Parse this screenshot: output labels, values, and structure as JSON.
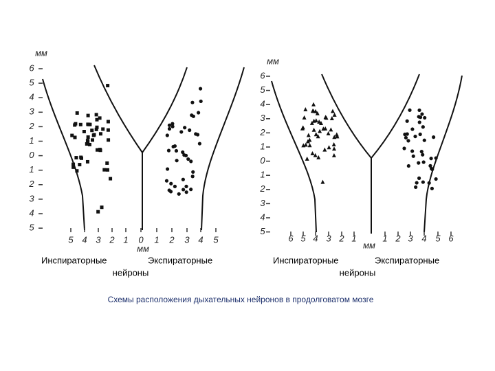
{
  "panels": [
    {
      "y_unit": "мм",
      "y_labels": [
        "6",
        "5",
        "4",
        "3",
        "2",
        "1",
        "0",
        "1",
        "2",
        "3",
        "4",
        "5"
      ],
      "x_labels": [
        "5",
        "4",
        "3",
        "2",
        "1",
        "0",
        "1",
        "2",
        "3",
        "4",
        "5"
      ],
      "x_unit": "мм",
      "captions": {
        "left": "Инспираторные",
        "right": "Экспираторные",
        "bottom": "нейроны"
      }
    },
    {
      "y_unit": "мм",
      "y_labels": [
        "6",
        "5",
        "4",
        "3",
        "2",
        "1",
        "0",
        "1",
        "2",
        "3",
        "4",
        "5"
      ],
      "x_labels": [
        "6",
        "5",
        "4",
        "3",
        "2",
        "1",
        "1",
        "2",
        "3",
        "4",
        "5",
        "6"
      ],
      "x_unit": "мм",
      "captions": {
        "left": "Инспираторные",
        "right": "Экспираторные",
        "bottom": "нейроны"
      }
    }
  ],
  "caption": "Схемы расположения дыхательных нейронов в продолговатом мозге"
}
